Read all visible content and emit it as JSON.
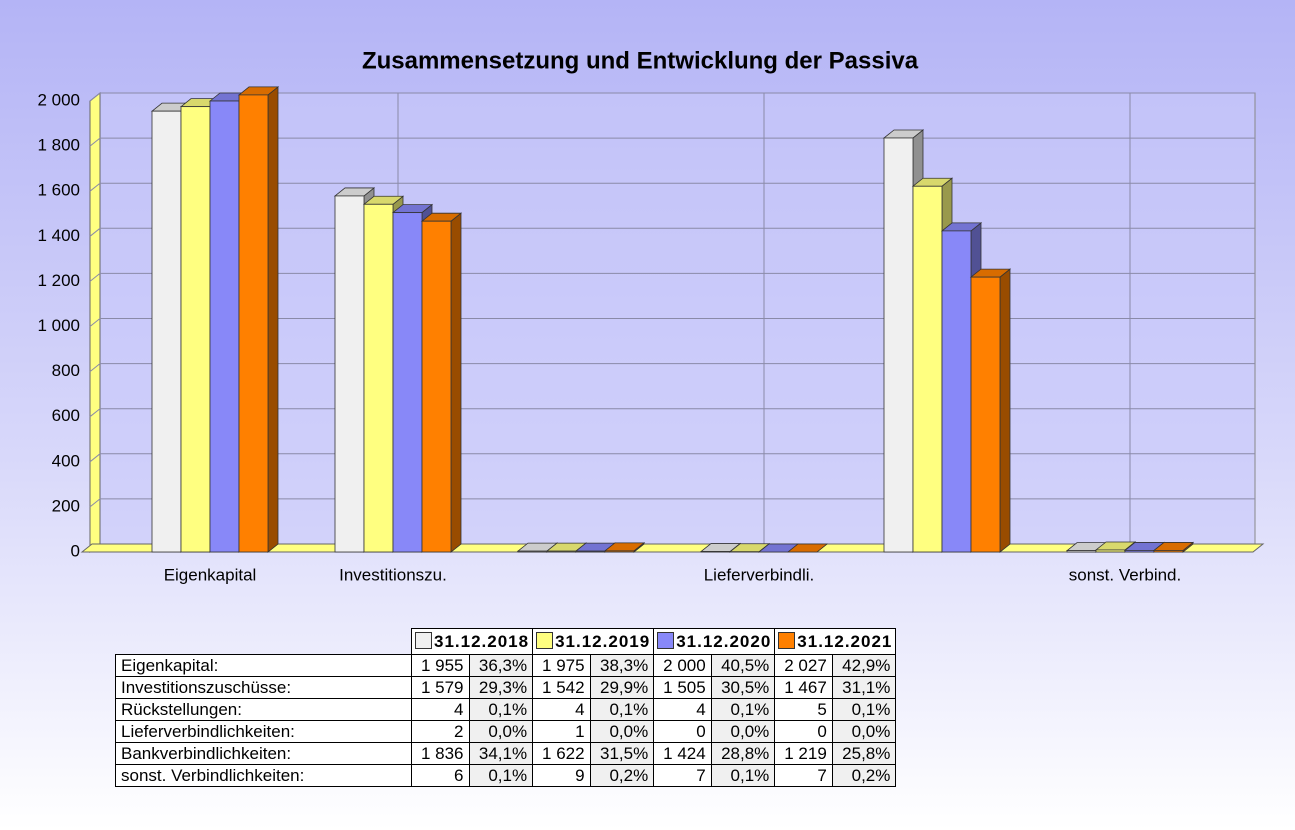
{
  "chart_data": {
    "type": "bar",
    "title": "Zusammensetzung und Entwicklung der Passiva",
    "categories": [
      "Eigenkapital",
      "Investitionszu.",
      null,
      "Lieferverbindli.",
      null,
      "sonst. Verbind."
    ],
    "series": [
      {
        "name": "31.12.2018",
        "color": "#f0f0f0",
        "values": [
          1955,
          1579,
          4,
          2,
          1836,
          6
        ]
      },
      {
        "name": "31.12.2019",
        "color": "#ffff80",
        "values": [
          1975,
          1542,
          4,
          1,
          1622,
          9
        ]
      },
      {
        "name": "31.12.2020",
        "color": "#8888f8",
        "values": [
          2000,
          1505,
          4,
          0,
          1424,
          7
        ]
      },
      {
        "name": "31.12.2021",
        "color": "#ff8000",
        "values": [
          2027,
          1467,
          5,
          0,
          1219,
          7
        ]
      }
    ],
    "ylim": [
      0,
      2000
    ],
    "yticks": [
      0,
      200,
      400,
      600,
      800,
      {
        "value": 1000,
        "label": "1 000"
      },
      {
        "value": 1200,
        "label": "1 200"
      },
      {
        "value": 1400,
        "label": "1 400"
      },
      {
        "value": 1600,
        "label": "1 600"
      },
      {
        "value": 1800,
        "label": "1 800"
      },
      {
        "value": 2000,
        "label": "2 000"
      }
    ],
    "grid": true
  },
  "table": {
    "rows": [
      {
        "label": "Eigenkapital:",
        "cells": [
          "1 955",
          "36,3%",
          "1 975",
          "38,3%",
          "2 000",
          "40,5%",
          "2 027",
          "42,9%"
        ]
      },
      {
        "label": "Investitionszuschüsse:",
        "cells": [
          "1 579",
          "29,3%",
          "1 542",
          "29,9%",
          "1 505",
          "30,5%",
          "1 467",
          "31,1%"
        ]
      },
      {
        "label": "Rückstellungen:",
        "cells": [
          "4",
          "0,1%",
          "4",
          "0,1%",
          "4",
          "0,1%",
          "5",
          "0,1%"
        ]
      },
      {
        "label": "Lieferverbindlichkeiten:",
        "cells": [
          "2",
          "0,0%",
          "1",
          "0,0%",
          "0",
          "0,0%",
          "0",
          "0,0%"
        ]
      },
      {
        "label": "Bankverbindlichkeiten:",
        "cells": [
          "1 836",
          "34,1%",
          "1 622",
          "31,5%",
          "1 424",
          "28,8%",
          "1 219",
          "25,8%"
        ]
      },
      {
        "label": "sonst. Verbindlichkeiten:",
        "cells": [
          "6",
          "0,1%",
          "9",
          "0,2%",
          "7",
          "0,1%",
          "7",
          "0,2%"
        ]
      }
    ]
  }
}
